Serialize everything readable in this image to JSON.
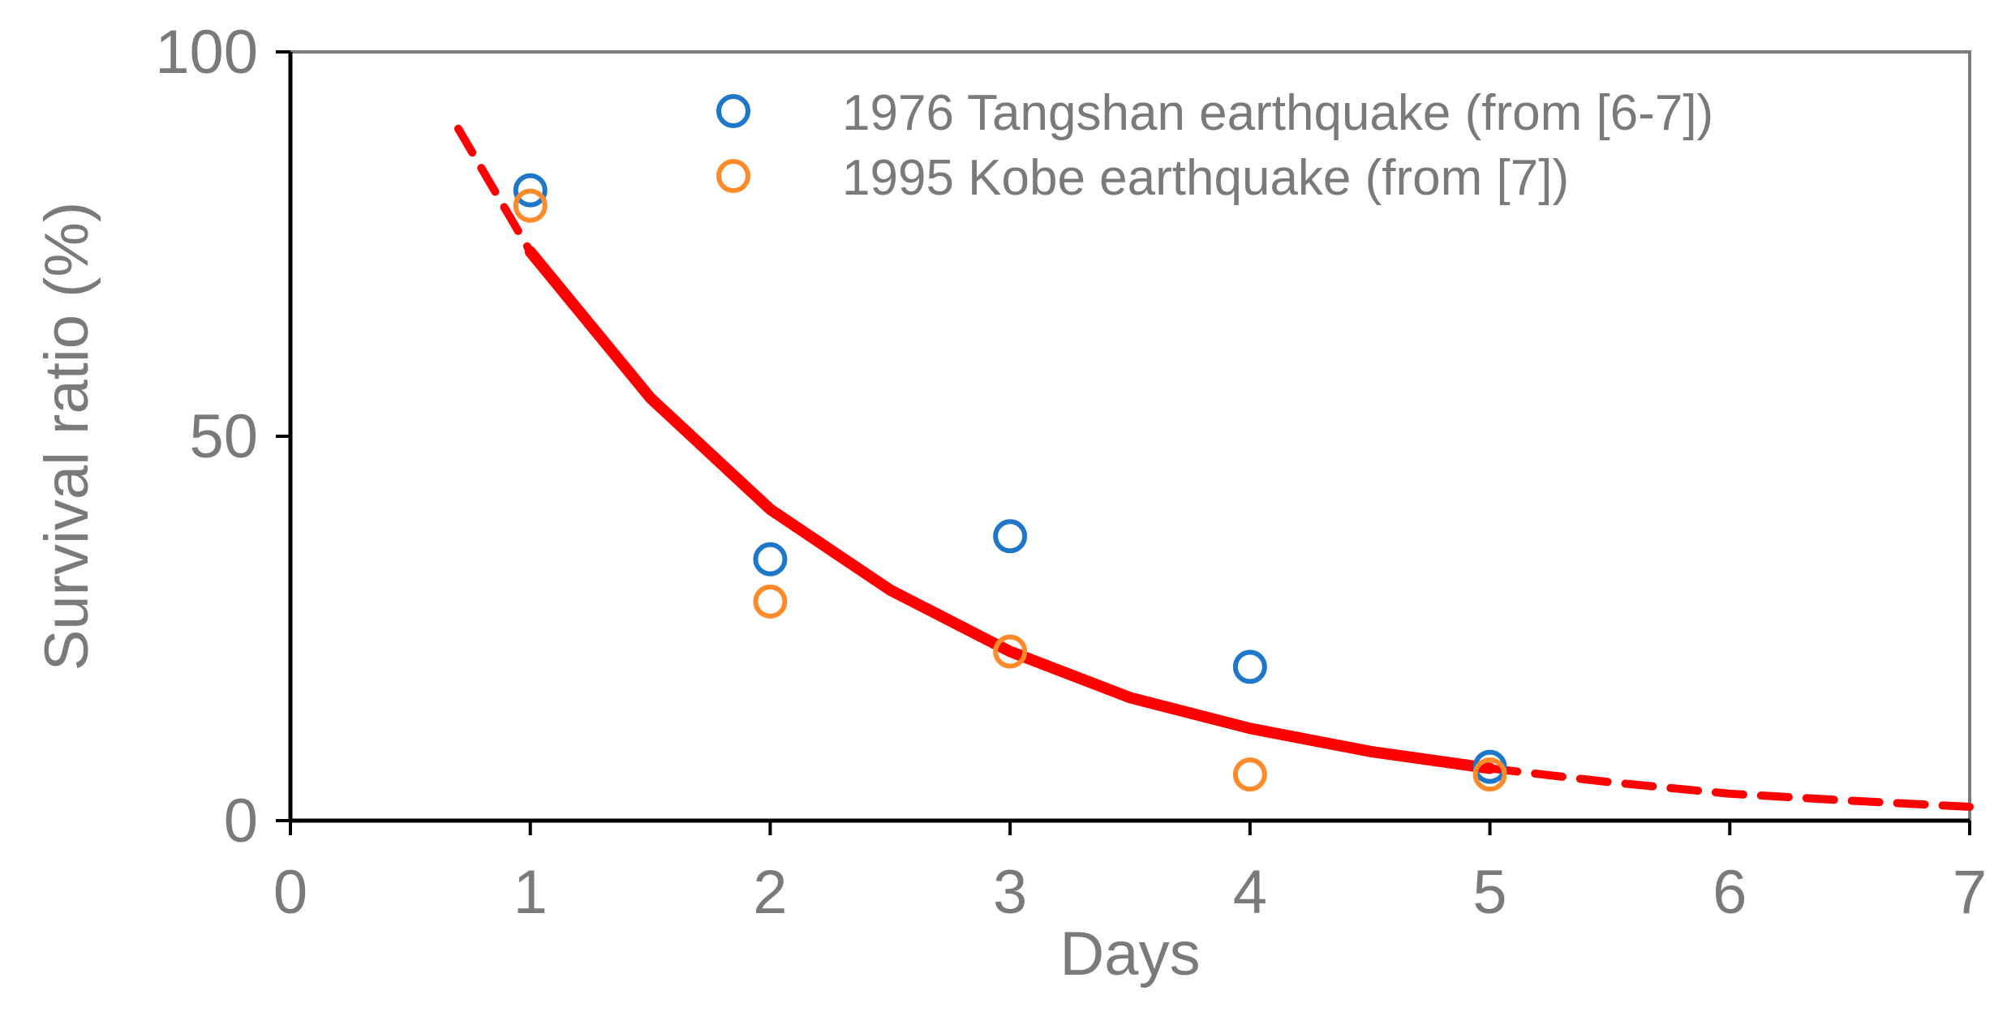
{
  "chart_data": {
    "type": "scatter",
    "title": "",
    "xlabel": "Days",
    "ylabel": "Survival ratio (%)",
    "xlim": [
      0,
      7
    ],
    "ylim": [
      0,
      100
    ],
    "xticks": [
      0,
      1,
      2,
      3,
      4,
      5,
      6,
      7
    ],
    "yticks": [
      0,
      50,
      100
    ],
    "grid": false,
    "legend_position": "top-right",
    "series": [
      {
        "name": "1976 Tangshan earthquake (from [6-7])",
        "kind": "scatter",
        "color": "#1f77c9",
        "x": [
          1,
          2,
          3,
          4,
          5
        ],
        "y": [
          82,
          34,
          37,
          20,
          7
        ]
      },
      {
        "name": "1995 Kobe earthquake (from [7])",
        "kind": "scatter",
        "color": "#ff8a2a",
        "x": [
          1,
          2,
          3,
          4,
          5
        ],
        "y": [
          80,
          28.5,
          22,
          6,
          6
        ]
      }
    ],
    "fit_curve": {
      "color": "#ff0000",
      "solid": {
        "x": [
          1,
          1.5,
          2,
          2.5,
          3,
          3.5,
          4,
          4.5,
          5
        ],
        "y": [
          74,
          55,
          40.5,
          30,
          22,
          16,
          12,
          9,
          6.8
        ]
      },
      "dashed_left": {
        "x": [
          0.7,
          1
        ],
        "y": [
          90,
          74
        ]
      },
      "dashed_right": {
        "x": [
          5,
          5.5,
          6,
          6.5,
          7
        ],
        "y": [
          6.8,
          5,
          3.5,
          2.6,
          1.8
        ]
      }
    }
  }
}
